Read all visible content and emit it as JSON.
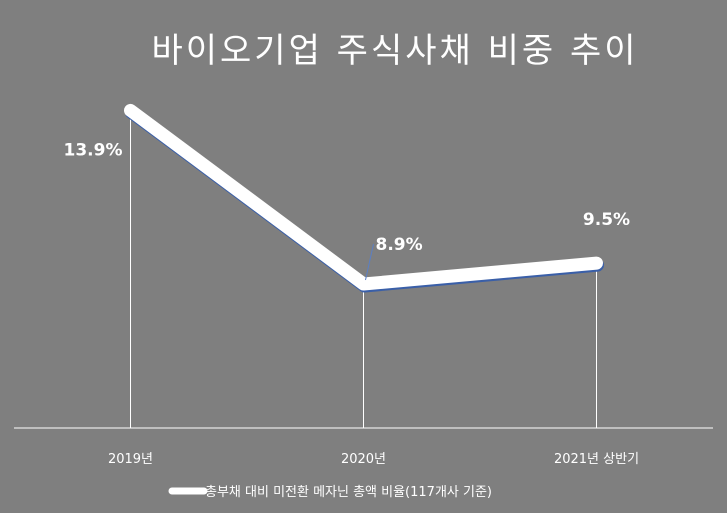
{
  "chart_data": {
    "type": "line",
    "title": "바이오기업 주식사채 비중 추이",
    "categories": [
      "2019년",
      "2020년",
      "2021년 상반기"
    ],
    "series": [
      {
        "name": "총부채 대비 미전환 메자닌 총액 비율(117개사 기준)",
        "values": [
          13.9,
          8.9,
          9.5
        ],
        "labels": [
          "13.9%",
          "8.9%",
          "9.5%"
        ]
      }
    ],
    "ylim": [
      4.75,
      14.2
    ],
    "grid": false,
    "legend_position": "bottom",
    "colors": {
      "background": "#7f7f7f",
      "line": "#ffffff",
      "line_shadow": "#3a5fa8",
      "text": "#ffffff",
      "axis": "#ffffff",
      "leader": "#ffffff"
    }
  }
}
